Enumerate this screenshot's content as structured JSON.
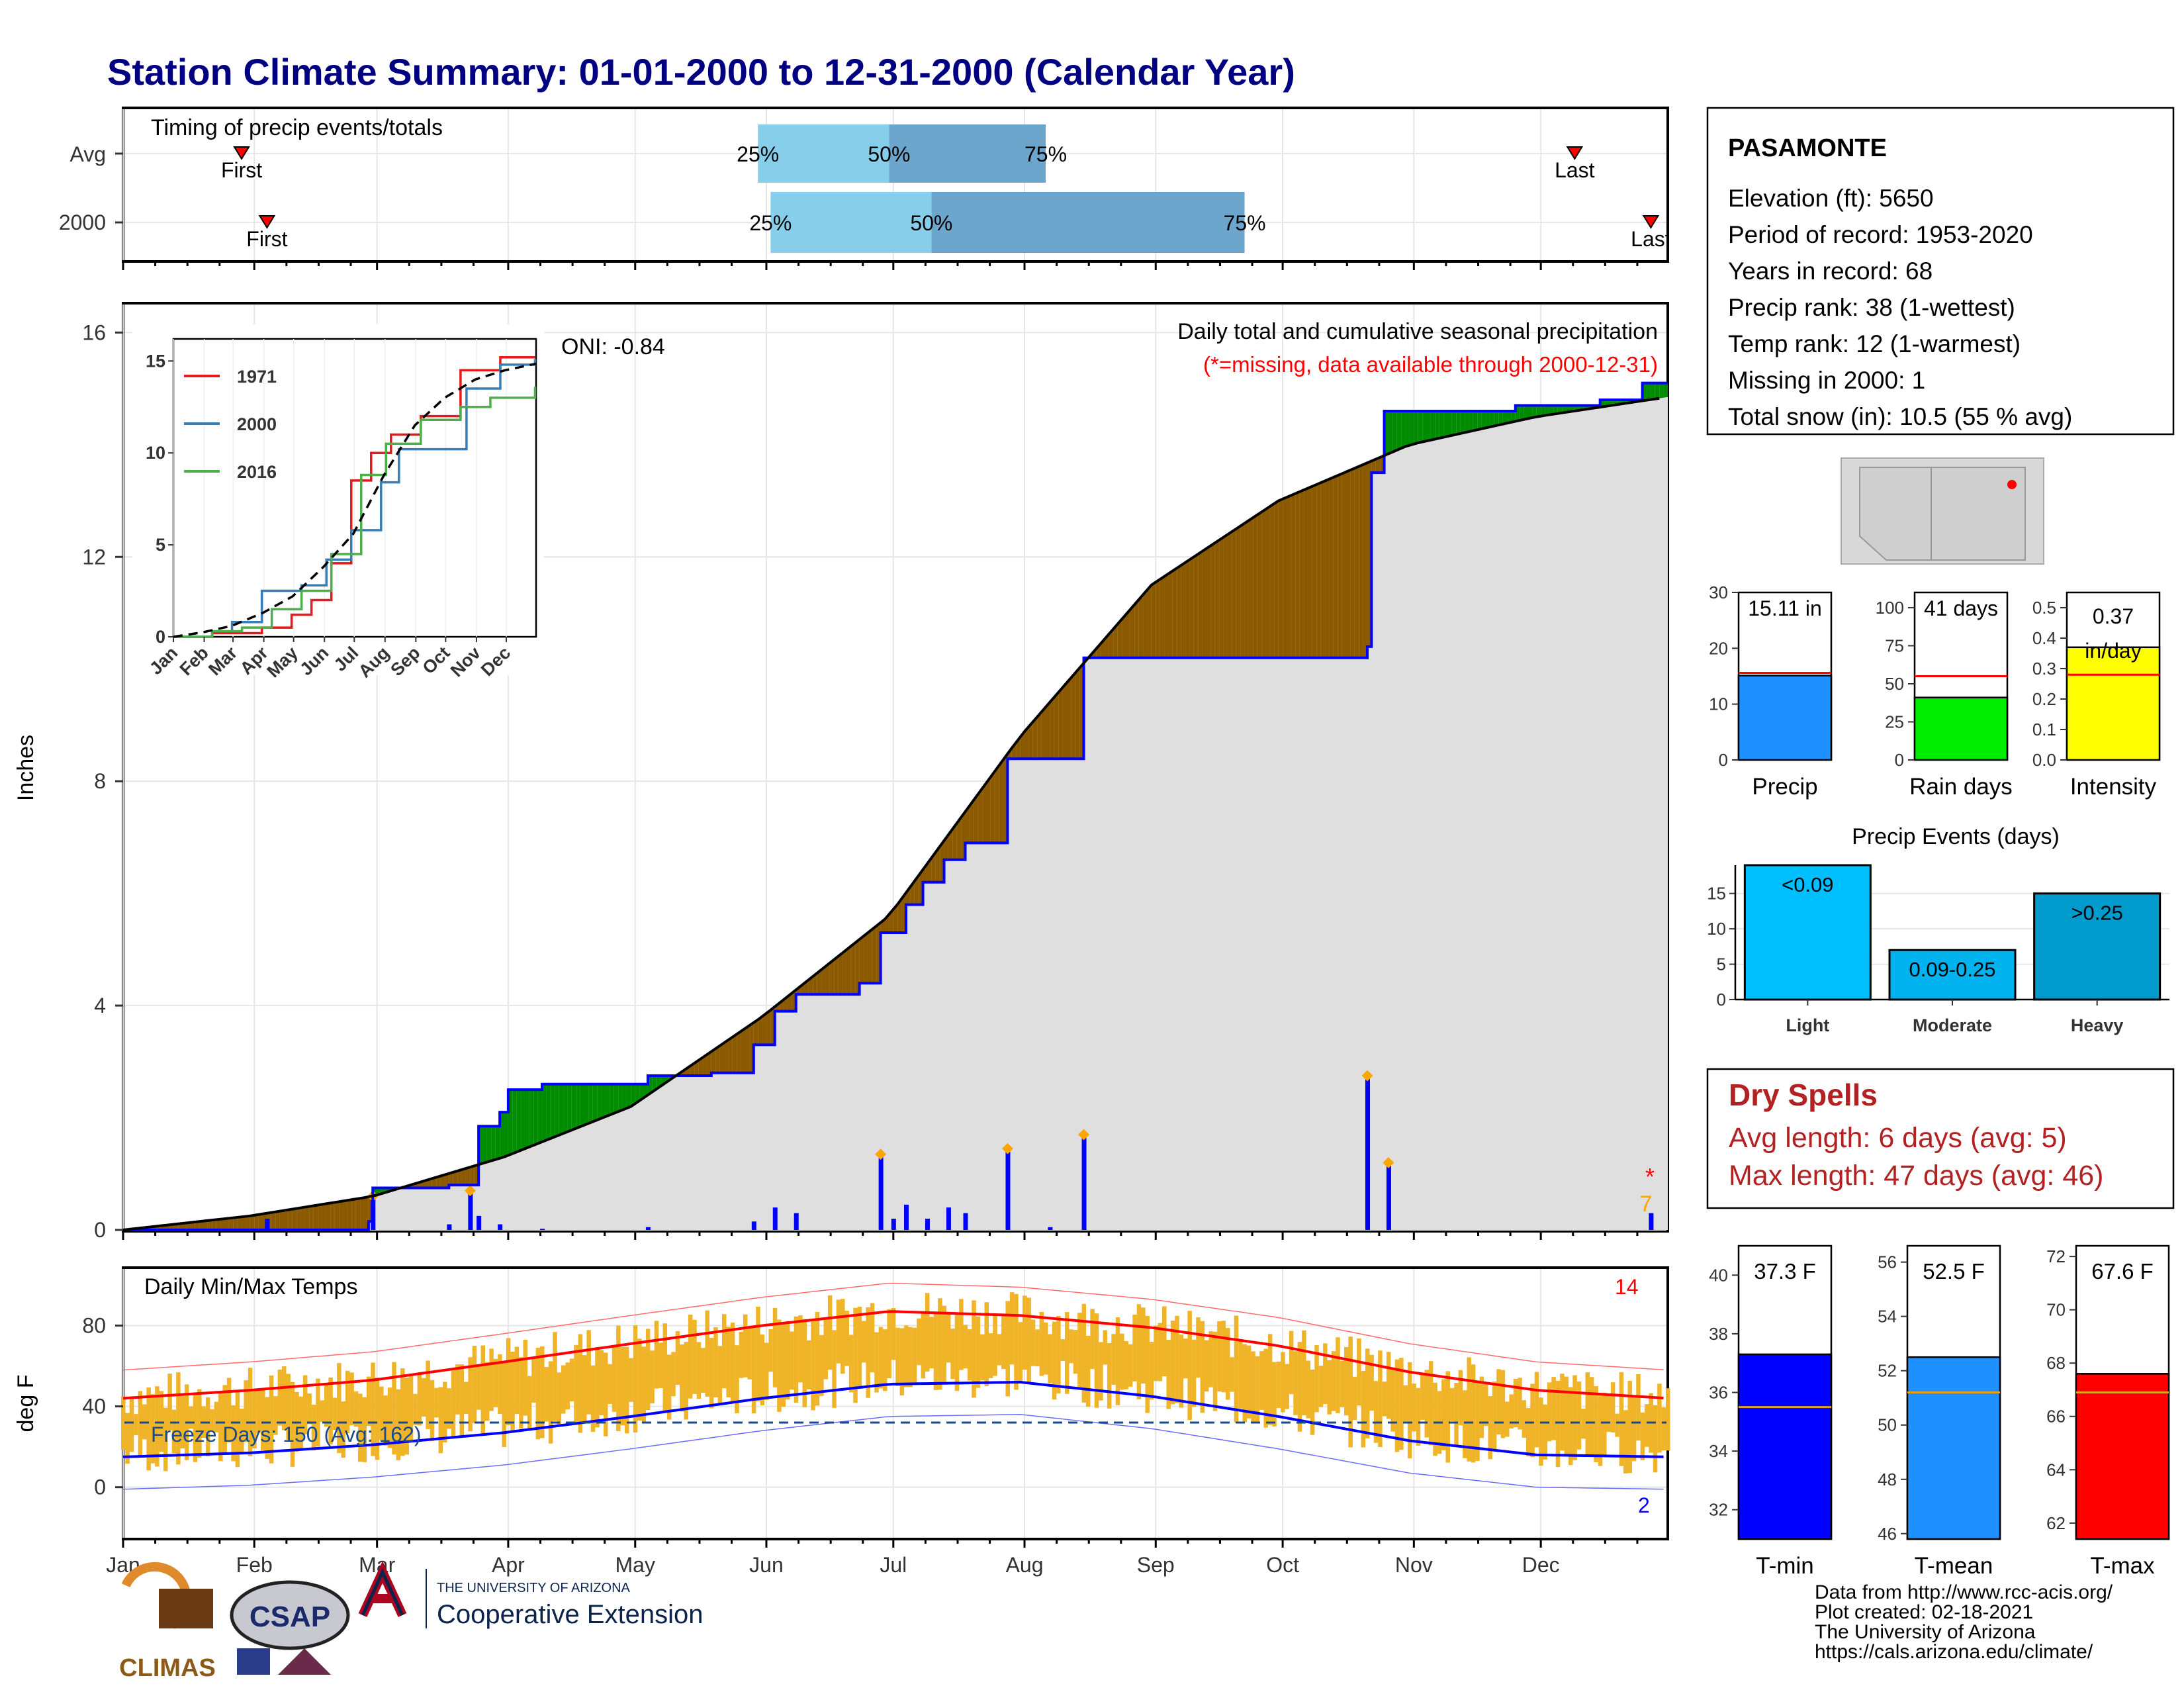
{
  "title": "Station Climate Summary: 01-01-2000 to 12-31-2000 (Calendar Year)",
  "months": [
    "Jan",
    "Feb",
    "Mar",
    "Apr",
    "May",
    "Jun",
    "Jul",
    "Aug",
    "Sep",
    "Oct",
    "Nov",
    "Dec"
  ],
  "timing": {
    "title": "Timing of precip events/totals",
    "rows": [
      {
        "label": "Avg",
        "first_doy": 29,
        "q25_doy": 151,
        "q50_doy": 182,
        "q75_doy": 219,
        "last_doy": 344
      },
      {
        "label": "2000",
        "first_doy": 35,
        "q25_doy": 154,
        "q50_doy": 192,
        "q75_doy": 266,
        "last_doy": 362
      }
    ],
    "first_label": "First",
    "last_label": "Last",
    "q25_label": "25%",
    "q50_label": "50%",
    "q75_label": "75%"
  },
  "precip_panel": {
    "ylabel": "Inches",
    "yticks": [
      "0",
      "4",
      "8",
      "12",
      "16"
    ],
    "ylim": [
      0,
      16.5
    ],
    "header": "Daily total and cumulative seasonal precipitation",
    "missing_note": "(*=missing, data available through 2000-12-31)",
    "oni": "ONI: -0.84",
    "missing_marker": "*",
    "accum_marker": "7"
  },
  "inset": {
    "yticks": [
      "0",
      "5",
      "10",
      "15"
    ],
    "legend": [
      "1971",
      "2000",
      "2016"
    ],
    "colors": {
      "1971": "#e41a1c",
      "2000": "#377eb8",
      "2016": "#4daf4a"
    }
  },
  "station": {
    "name": "PASAMONTE",
    "lines": [
      "Elevation (ft): 5650",
      "Period of record: 1953-2020",
      "Years in record: 68",
      "Precip rank: 38 (1-wettest)",
      "Temp rank: 12 (1-warmest)",
      "Missing in 2000: 1",
      "Total snow (in): 10.5 (55 % avg)"
    ]
  },
  "precip_bars": [
    {
      "name": "precip",
      "label": "Precip",
      "value": 15.11,
      "value_label": "15.11 in",
      "avg": 15.6,
      "ylim": [
        0,
        30
      ],
      "yticks": [
        "0",
        "10",
        "20",
        "30"
      ],
      "color": "#1e90ff"
    },
    {
      "name": "rain-days",
      "label": "Rain days",
      "value": 41,
      "value_label": "41 days",
      "avg": 55,
      "ylim": [
        0,
        110
      ],
      "yticks": [
        "0",
        "25",
        "50",
        "75",
        "100"
      ],
      "color": "#00ee00"
    },
    {
      "name": "intensity",
      "label": "Intensity",
      "value": 0.37,
      "value_label": "0.37 in/day",
      "avg": 0.28,
      "ylim": [
        0,
        0.55
      ],
      "yticks": [
        "0.0",
        "0.1",
        "0.2",
        "0.3",
        "0.4",
        "0.5"
      ],
      "color": "#ffff00"
    }
  ],
  "events": {
    "title": "Precip Events (days)",
    "ylim": [
      0,
      19
    ],
    "yticks": [
      "0",
      "5",
      "10",
      "15"
    ],
    "categories": [
      "Light",
      "Moderate",
      "Heavy"
    ],
    "values": [
      19,
      7,
      15
    ],
    "bar_labels": [
      "<0.09",
      "0.09-0.25",
      ">0.25"
    ],
    "colors": [
      "#00bfff",
      "#00b2ee",
      "#009acd"
    ]
  },
  "dry_spells": {
    "title": "Dry Spells",
    "avg_line": "Avg length: 6 days (avg: 5)",
    "max_line": "Max length: 47 days (avg: 46)",
    "color": "#b22222"
  },
  "temp_panel": {
    "ylabel": "deg F",
    "title": "Daily Min/Max Temps",
    "yticks": [
      "0",
      "40",
      "80"
    ],
    "ylim": [
      -25,
      108
    ],
    "freeze_label": "Freeze Days: 150 (Avg: 162)",
    "record_high_count": "14",
    "record_low_count": "2",
    "freeze_line": 32
  },
  "temp_bars": [
    {
      "name": "t-min",
      "label": "T-min",
      "value": 37.3,
      "value_label": "37.3 F",
      "avg": 35.5,
      "ylim": [
        31,
        41
      ],
      "yticks": [
        "32",
        "34",
        "36",
        "38",
        "40"
      ],
      "color": "#0000ff"
    },
    {
      "name": "t-mean",
      "label": "T-mean",
      "value": 52.5,
      "value_label": "52.5 F",
      "avg": 51.2,
      "ylim": [
        45.8,
        56.6
      ],
      "yticks": [
        "46",
        "48",
        "50",
        "52",
        "54",
        "56"
      ],
      "color": "#1e90ff"
    },
    {
      "name": "t-max",
      "label": "T-max",
      "value": 67.6,
      "value_label": "67.6 F",
      "avg": 66.9,
      "ylim": [
        61.4,
        72.4
      ],
      "yticks": [
        "62",
        "64",
        "66",
        "68",
        "70",
        "72"
      ],
      "color": "#ff0000"
    }
  ],
  "footer": {
    "lines": [
      "Data from http://www.rcc-acis.org/",
      "Plot created: 02-18-2021",
      "The University of Arizona",
      "https://cals.arizona.edu/climate/"
    ],
    "logo_climas": "CLIMAS",
    "logo_csap": "CSAP",
    "logo_ua_small": "THE UNIVERSITY OF ARIZONA",
    "logo_ua_big": "Cooperative Extension"
  },
  "chart_data": {
    "type": "area",
    "title": "Station Climate Summary: 01-01-2000 to 12-31-2000 (Calendar Year)",
    "xlabel": "",
    "ylabel": "Inches",
    "ylim": [
      0,
      16.5
    ],
    "x_unit": "day of year",
    "cumulative_2000": [
      [
        1,
        0
      ],
      [
        59,
        0.15
      ],
      [
        60,
        0.75
      ],
      [
        78,
        0.8
      ],
      [
        85,
        1.85
      ],
      [
        90,
        2.1
      ],
      [
        92,
        2.5
      ],
      [
        100,
        2.6
      ],
      [
        125,
        2.75
      ],
      [
        140,
        2.8
      ],
      [
        150,
        3.3
      ],
      [
        155,
        3.9
      ],
      [
        160,
        4.2
      ],
      [
        175,
        4.4
      ],
      [
        180,
        5.3
      ],
      [
        186,
        5.8
      ],
      [
        190,
        6.2
      ],
      [
        195,
        6.6
      ],
      [
        200,
        6.9
      ],
      [
        210,
        8.4
      ],
      [
        220,
        8.4
      ],
      [
        228,
        10.2
      ],
      [
        240,
        10.2
      ],
      [
        255,
        10.2
      ],
      [
        275,
        10.2
      ],
      [
        295,
        10.4
      ],
      [
        296,
        13.5
      ],
      [
        299,
        14.6
      ],
      [
        330,
        14.7
      ],
      [
        350,
        14.8
      ],
      [
        360,
        15.1
      ],
      [
        366,
        15.1
      ]
    ],
    "cumulative_avg": [
      [
        1,
        0
      ],
      [
        31,
        0.25
      ],
      [
        60,
        0.6
      ],
      [
        91,
        1.3
      ],
      [
        121,
        2.2
      ],
      [
        152,
        3.8
      ],
      [
        182,
        5.6
      ],
      [
        213,
        8.8
      ],
      [
        244,
        11.5
      ],
      [
        274,
        13.0
      ],
      [
        305,
        14.0
      ],
      [
        335,
        14.5
      ],
      [
        366,
        14.85
      ]
    ],
    "daily_2000": [
      [
        35,
        0.2
      ],
      [
        60,
        0.6
      ],
      [
        78,
        0.1
      ],
      [
        83,
        0.7
      ],
      [
        85,
        0.25
      ],
      [
        90,
        0.1
      ],
      [
        100,
        0.02
      ],
      [
        125,
        0.05
      ],
      [
        150,
        0.15
      ],
      [
        155,
        0.4
      ],
      [
        160,
        0.3
      ],
      [
        180,
        1.35
      ],
      [
        183,
        0.2
      ],
      [
        186,
        0.45
      ],
      [
        191,
        0.2
      ],
      [
        196,
        0.4
      ],
      [
        200,
        0.3
      ],
      [
        210,
        1.45
      ],
      [
        220,
        0.05
      ],
      [
        228,
        1.7
      ],
      [
        295,
        2.75
      ],
      [
        300,
        1.2
      ],
      [
        362,
        0.3
      ]
    ],
    "inset_series": [
      {
        "name": "1971",
        "values": [
          [
            1,
            0
          ],
          [
            40,
            0.2
          ],
          [
            90,
            0.5
          ],
          [
            120,
            1.2
          ],
          [
            140,
            2.0
          ],
          [
            160,
            4.0
          ],
          [
            180,
            8.5
          ],
          [
            200,
            10.0
          ],
          [
            220,
            11.0
          ],
          [
            250,
            12.0
          ],
          [
            290,
            14.5
          ],
          [
            330,
            15.2
          ],
          [
            365,
            15.2
          ]
        ]
      },
      {
        "name": "2000",
        "values": [
          [
            1,
            0
          ],
          [
            40,
            0.3
          ],
          [
            60,
            0.8
          ],
          [
            90,
            2.5
          ],
          [
            130,
            2.8
          ],
          [
            155,
            4.2
          ],
          [
            180,
            5.8
          ],
          [
            210,
            8.4
          ],
          [
            228,
            10.2
          ],
          [
            290,
            10.2
          ],
          [
            296,
            13.5
          ],
          [
            330,
            14.8
          ],
          [
            365,
            15.1
          ]
        ]
      },
      {
        "name": "2016",
        "values": [
          [
            1,
            0
          ],
          [
            40,
            0.3
          ],
          [
            70,
            0.5
          ],
          [
            100,
            1.5
          ],
          [
            130,
            2.5
          ],
          [
            160,
            4.5
          ],
          [
            190,
            8.8
          ],
          [
            215,
            10.5
          ],
          [
            250,
            11.8
          ],
          [
            290,
            12.5
          ],
          [
            320,
            13.0
          ],
          [
            365,
            13.6
          ]
        ]
      }
    ],
    "temp_avg_max": [
      [
        1,
        44
      ],
      [
        31,
        48
      ],
      [
        60,
        53
      ],
      [
        91,
        62
      ],
      [
        121,
        71
      ],
      [
        152,
        80
      ],
      [
        182,
        87
      ],
      [
        213,
        85
      ],
      [
        244,
        79
      ],
      [
        274,
        70
      ],
      [
        305,
        57
      ],
      [
        335,
        48
      ],
      [
        366,
        44
      ]
    ],
    "temp_avg_min": [
      [
        1,
        15
      ],
      [
        31,
        17
      ],
      [
        60,
        21
      ],
      [
        91,
        27
      ],
      [
        121,
        35
      ],
      [
        152,
        44
      ],
      [
        182,
        51
      ],
      [
        213,
        52
      ],
      [
        244,
        45
      ],
      [
        274,
        35
      ],
      [
        305,
        23
      ],
      [
        335,
        16
      ],
      [
        366,
        15
      ]
    ]
  }
}
